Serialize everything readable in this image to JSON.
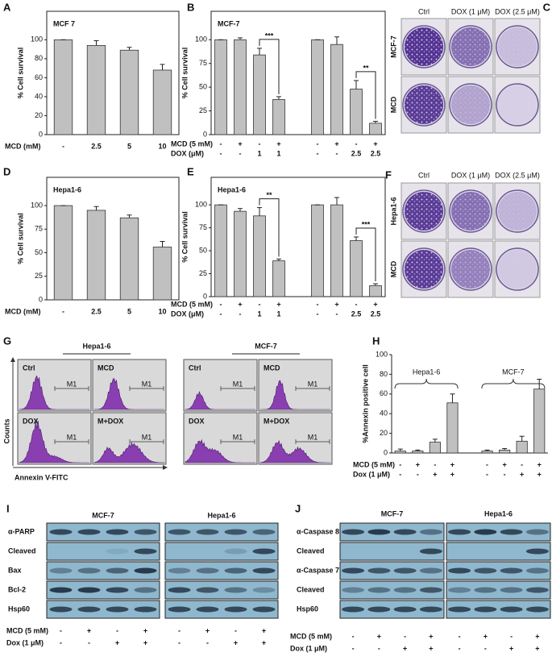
{
  "chart_data": [
    {
      "type": "bar",
      "panel": "A",
      "title": "MCF 7",
      "ylabel": "% Cell survival",
      "xlabel": "MCD (mM)",
      "categories": [
        "-",
        "2.5",
        "5",
        "10"
      ],
      "values": [
        100,
        94,
        89,
        68
      ],
      "errors": [
        0,
        5,
        3,
        6
      ],
      "color": "#c0c0c0",
      "ylim": [
        0,
        130
      ],
      "yticks": [
        0,
        20,
        40,
        60,
        80,
        100
      ]
    },
    {
      "type": "bar",
      "panel": "B",
      "title": "MCF-7",
      "ylabel": "% Cell survival",
      "rows": [
        {
          "label": "MCD (5 mM)",
          "values": [
            "-",
            "+",
            "-",
            "+",
            "-",
            "+",
            "-",
            "+"
          ]
        },
        {
          "label": "DOX (μM)",
          "values": [
            "-",
            "-",
            "1",
            "1",
            "-",
            "-",
            "2.5",
            "2.5"
          ]
        }
      ],
      "values": [
        100,
        100,
        84,
        37,
        100,
        95,
        48,
        12
      ],
      "errors": [
        0,
        2,
        7,
        3,
        0,
        8,
        9,
        2
      ],
      "annotations": [
        "***",
        "**"
      ],
      "color": "#c0c0c0",
      "ylim": [
        0,
        130
      ],
      "yticks": [
        0,
        25,
        50,
        75,
        100
      ]
    },
    {
      "type": "bar",
      "panel": "D",
      "title": "Hepa1-6",
      "ylabel": "% Cell survival",
      "xlabel": "MCD (mM)",
      "categories": [
        "-",
        "2.5",
        "5",
        "10"
      ],
      "values": [
        100,
        95,
        87,
        56
      ],
      "errors": [
        0,
        4,
        3,
        6
      ],
      "color": "#c0c0c0",
      "ylim": [
        0,
        130
      ],
      "yticks": [
        0,
        25,
        50,
        75,
        100
      ]
    },
    {
      "type": "bar",
      "panel": "E",
      "title": "Hepa1-6",
      "ylabel": "% Cell survival",
      "rows": [
        {
          "label": "MCD (5 mM)",
          "values": [
            "-",
            "+",
            "-",
            "+",
            "-",
            "+",
            "-",
            "+"
          ]
        },
        {
          "label": "DOX (μM)",
          "values": [
            "-",
            "-",
            "1",
            "1",
            "-",
            "-",
            "2.5",
            "2.5"
          ]
        }
      ],
      "values": [
        100,
        93,
        88,
        39,
        100,
        100,
        61,
        12
      ],
      "errors": [
        0,
        3,
        9,
        2,
        0,
        8,
        4,
        2
      ],
      "annotations": [
        "**",
        "***"
      ],
      "color": "#c0c0c0",
      "ylim": [
        0,
        130
      ],
      "yticks": [
        0,
        25,
        50,
        75,
        100
      ]
    },
    {
      "type": "bar",
      "panel": "H",
      "ylabel": "%Annexin positive cell",
      "group_labels": [
        "Hepa1-6",
        "MCF-7"
      ],
      "rows": [
        {
          "label": "MCD (5 mM)",
          "values": [
            "-",
            "+",
            "-",
            "+",
            "-",
            "+",
            "-",
            "+"
          ]
        },
        {
          "label": "Dox (1 μM)",
          "values": [
            "-",
            "-",
            "+",
            "+",
            "-",
            "-",
            "+",
            "+"
          ]
        }
      ],
      "values": [
        2,
        2,
        11,
        51,
        2,
        3,
        12,
        65
      ],
      "errors": [
        2,
        1,
        3,
        9,
        1,
        1.5,
        5,
        10
      ],
      "color": "#c0c0c0",
      "ylim": [
        0,
        100
      ],
      "yticks": [
        0,
        20,
        40,
        60,
        80,
        100
      ]
    }
  ],
  "colony": [
    {
      "panel": "C",
      "columns": [
        "Ctrl",
        "DOX (1 μM)",
        "DOX (2.5 μM)"
      ],
      "rows": [
        "MCF-7",
        "MCD"
      ]
    },
    {
      "panel": "F",
      "columns": [
        "Ctrl",
        "DOX (1 μM)",
        "DOX (2.5 μM)"
      ],
      "rows": [
        "Hepa1-6",
        "MCD"
      ]
    }
  ],
  "flow": {
    "panel": "G",
    "groups": [
      {
        "name": "Hepa1-6",
        "plots": [
          "Ctrl",
          "MCD",
          "DOX",
          "M+DOX"
        ]
      },
      {
        "name": "MCF-7",
        "plots": [
          "Ctrl",
          "MCD",
          "DOX",
          "M+DOX"
        ]
      }
    ],
    "gate": "M1",
    "ylabel": "Counts",
    "xlabel": "Annexin V-FITC"
  },
  "blots": [
    {
      "panel": "I",
      "groups": [
        "MCF-7",
        "Hepa1-6"
      ],
      "rows": [
        "α-PARP",
        "Cleaved",
        "Bax",
        "Bcl-2",
        "Hsp60"
      ],
      "conditions": [
        {
          "label": "MCD (5 mM)",
          "values": [
            "-",
            "+",
            "-",
            "+",
            "-",
            "+",
            "-",
            "+"
          ]
        },
        {
          "label": "Dox (1 μM)",
          "values": [
            "-",
            "-",
            "+",
            "+",
            "-",
            "-",
            "+",
            "+"
          ]
        }
      ]
    },
    {
      "panel": "J",
      "groups": [
        "MCF-7",
        "Hepa1-6"
      ],
      "rows": [
        "α-Caspase 8",
        "Cleaved",
        "α-Caspase 7",
        "Cleaved",
        "Hsp60"
      ],
      "conditions": [
        {
          "label": "MCD (5 mM)",
          "values": [
            "-",
            "+",
            "-",
            "+",
            "-",
            "+",
            "-",
            "+"
          ]
        },
        {
          "label": "Dox (1 μM)",
          "values": [
            "-",
            "-",
            "+",
            "+",
            "-",
            "-",
            "+",
            "+"
          ]
        }
      ]
    }
  ]
}
